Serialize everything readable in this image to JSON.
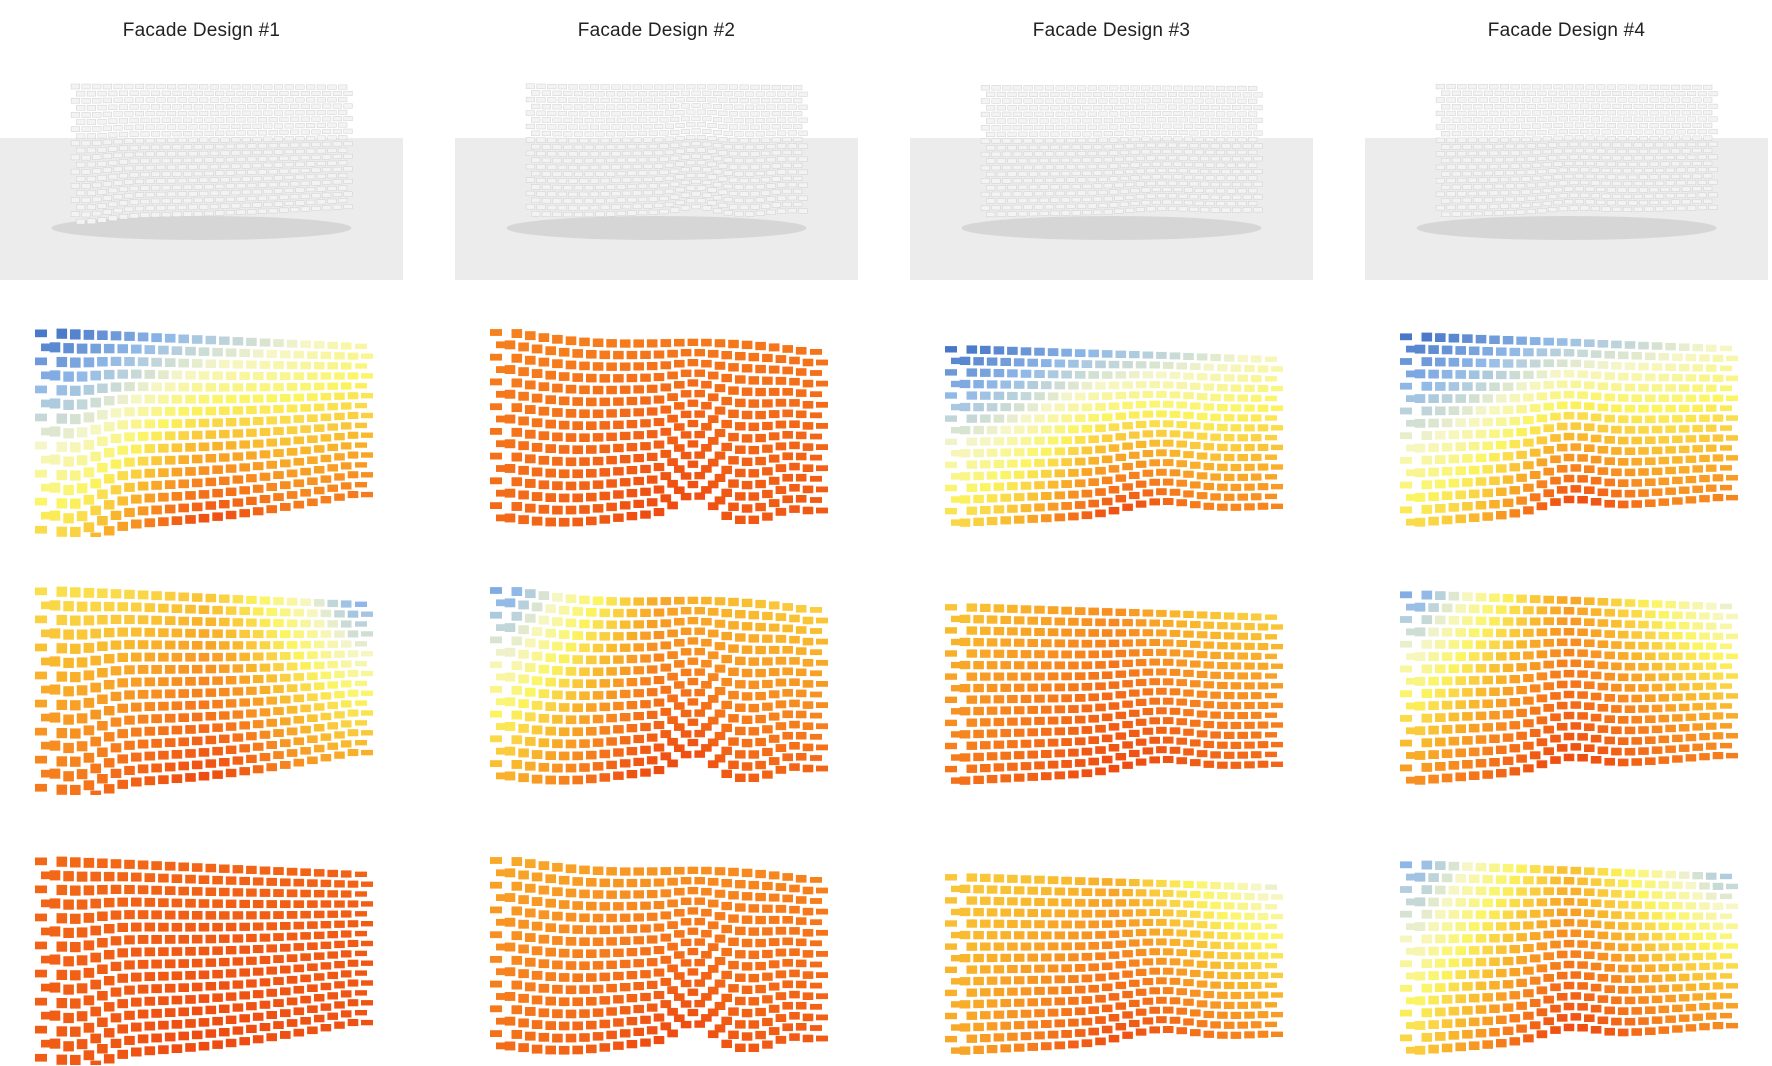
{
  "columns": [
    {
      "title": "Facade Design #1",
      "shape": "flat",
      "rows": [
        {
          "fields": [
            [
              0.0,
              0.38,
              0.62,
              0.85,
              1.0
            ]
          ]
        },
        {
          "fields": [
            [
              0.55,
              0.72,
              0.88,
              0.95,
              1.0
            ],
            [
              0.45,
              0.8,
              0.88,
              0.92,
              1.0
            ],
            [
              0.1,
              0.15,
              0.35,
              0.7,
              0.9
            ]
          ]
        },
        {
          "fields": [
            [
              0.9,
              0.92,
              0.95,
              0.98,
              1.0
            ]
          ]
        }
      ]
    },
    {
      "title": "Facade Design #2",
      "shape": "wave",
      "rows": [
        {
          "fields": [
            [
              0.82,
              0.86,
              0.9,
              0.95,
              1.0
            ]
          ]
        },
        {
          "fields": [
            [
              0.12,
              0.5,
              0.7,
              0.9,
              1.0
            ],
            [
              0.6,
              0.82,
              0.9,
              0.95,
              1.0
            ],
            [
              0.3,
              0.6,
              0.8,
              0.92,
              1.0
            ]
          ]
        },
        {
          "fields": [
            [
              0.55,
              0.72,
              0.85,
              0.95,
              1.0
            ],
            [
              0.8,
              0.88,
              0.92,
              0.95,
              1.0
            ]
          ]
        }
      ]
    },
    {
      "title": "Facade Design #3",
      "shape": "dip",
      "rows": [
        {
          "fields": [
            [
              0.0,
              0.34,
              0.6,
              0.82,
              1.0
            ]
          ]
        },
        {
          "fields": [
            [
              0.62,
              0.8,
              0.88,
              0.95,
              1.0
            ],
            [
              0.68,
              0.88,
              0.92,
              0.96,
              1.0
            ],
            [
              0.05,
              0.6,
              0.82,
              0.92,
              1.0
            ]
          ]
        },
        {
          "fields": [
            [
              0.62,
              0.65,
              0.72,
              0.85,
              0.95
            ],
            [
              0.6,
              0.78,
              0.86,
              0.92,
              0.98
            ],
            [
              0.1,
              0.3,
              0.6,
              0.82,
              0.95
            ]
          ]
        }
      ]
    },
    {
      "title": "Facade Design #4",
      "shape": "dip2",
      "rows": [
        {
          "fields": [
            [
              0.0,
              0.33,
              0.58,
              0.82,
              1.0
            ]
          ]
        },
        {
          "fields": [
            [
              0.12,
              0.55,
              0.8,
              0.9,
              1.0
            ],
            [
              0.62,
              0.82,
              0.9,
              0.95,
              1.0
            ],
            [
              0.1,
              0.3,
              0.65,
              0.85,
              0.95
            ]
          ]
        },
        {
          "fields": [
            [
              0.15,
              0.45,
              0.62,
              0.82,
              0.95
            ],
            [
              0.55,
              0.75,
              0.85,
              0.92,
              1.0
            ],
            [
              0.0,
              0.2,
              0.55,
              0.82,
              0.95
            ]
          ]
        }
      ]
    }
  ],
  "colors": {
    "ramp": [
      "#3f6fc4",
      "#8fb8e8",
      "#f6f6c8",
      "#fbf560",
      "#f9b72c",
      "#f67d1c",
      "#ee4a10"
    ],
    "render_wall": "#f3f3f3",
    "render_ground": "#ececec",
    "render_shadow": "#d4d4d4"
  }
}
